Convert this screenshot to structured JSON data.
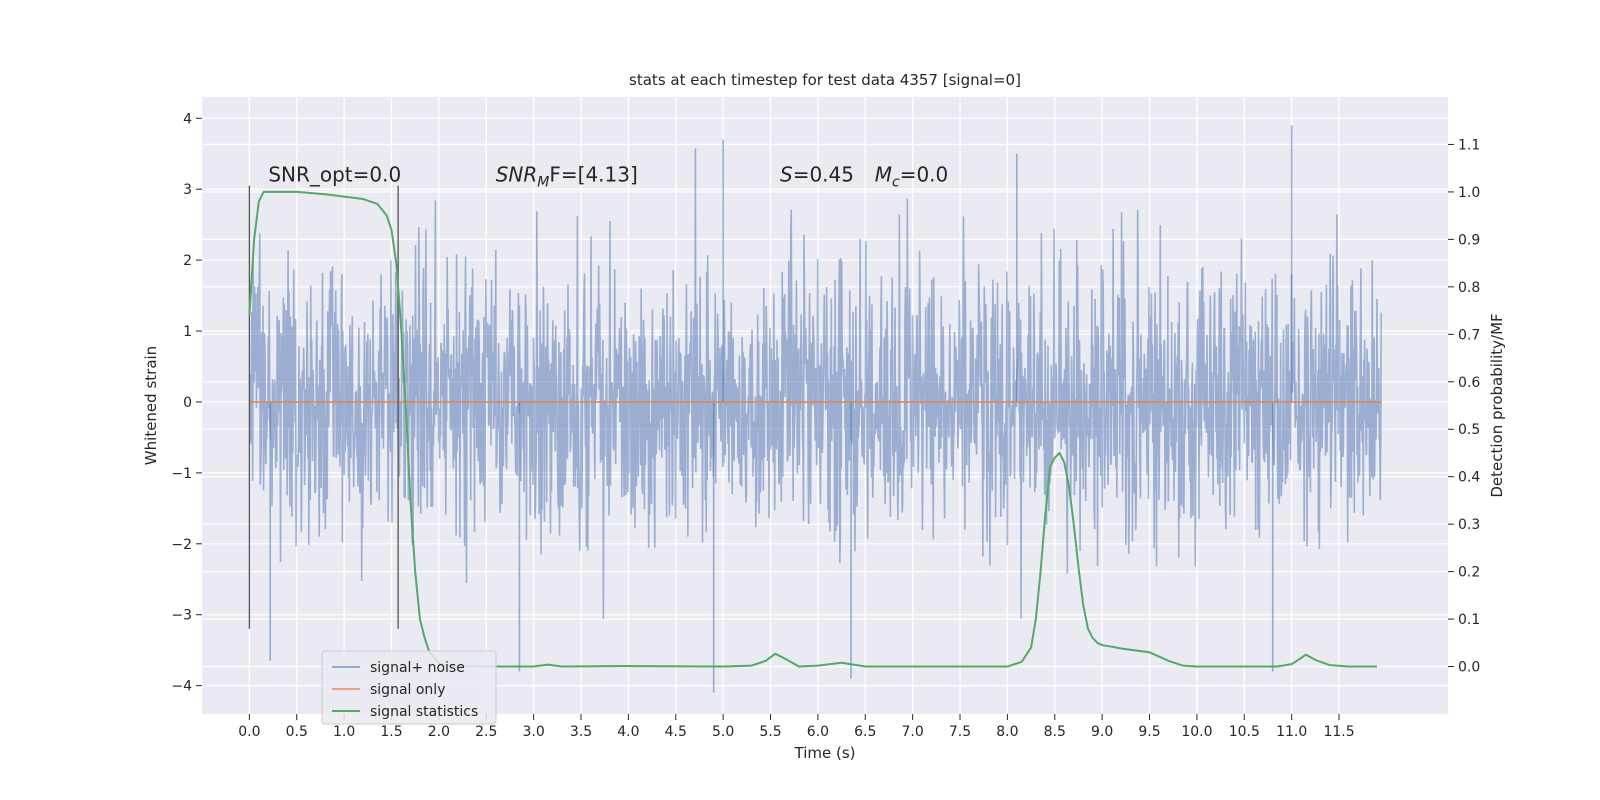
{
  "chart_data": {
    "type": "line",
    "title": "stats at each timestep for test data 4357 [signal=0]",
    "xlabel": "Time (s)",
    "ylabel": "Whitened strain",
    "y2label": "Detection probability/MF",
    "xlim": [
      -0.5,
      12.65
    ],
    "ylim": [
      -4.4,
      4.3
    ],
    "y2lim": [
      -0.1,
      1.2
    ],
    "x_ticks": [
      0.0,
      0.5,
      1.0,
      1.5,
      2.0,
      2.5,
      3.0,
      3.5,
      4.0,
      4.5,
      5.0,
      5.5,
      6.0,
      6.5,
      7.0,
      7.5,
      8.0,
      8.5,
      9.0,
      9.5,
      10.0,
      10.5,
      11.0,
      11.5
    ],
    "x_tick_labels": [
      "0.0",
      "0.5",
      "1.0",
      "1.5",
      "2.0",
      "2.5",
      "3.0",
      "3.5",
      "4.0",
      "4.5",
      "5.0",
      "5.5",
      "6.0",
      "6.5",
      "7.0",
      "7.5",
      "8.0",
      "8.5",
      "9.0",
      "9.5",
      "10.0",
      "10.5",
      "11.0",
      "11.5"
    ],
    "y_ticks": [
      -4,
      -3,
      -2,
      -1,
      0,
      1,
      2,
      3,
      4
    ],
    "y_tick_labels": [
      "−4",
      "−3",
      "−2",
      "−1",
      "0",
      "1",
      "2",
      "3",
      "4"
    ],
    "y2_ticks": [
      0.0,
      0.1,
      0.2,
      0.3,
      0.4,
      0.5,
      0.6,
      0.7,
      0.8,
      0.9,
      1.0,
      1.1
    ],
    "y2_tick_labels": [
      "0.0",
      "0.1",
      "0.2",
      "0.3",
      "0.4",
      "0.5",
      "0.6",
      "0.7",
      "0.8",
      "0.9",
      "1.0",
      "1.1"
    ],
    "grid": true,
    "legend_position": "lower-left",
    "series": [
      {
        "name": "signal+ noise",
        "axis": "left",
        "color": "#4c72b0",
        "description_of_data": "dense whitened strain noise from 0 to ~12 s, mostly within ±2.5, spikes to about ±3.9",
        "x_range": [
          0.0,
          11.95
        ],
        "extremes": {
          "max": 3.9,
          "min": -4.1
        }
      },
      {
        "name": "signal only",
        "axis": "left",
        "color": "#dd8452",
        "x": [
          0.0,
          11.95
        ],
        "y": [
          0.0,
          0.0
        ]
      },
      {
        "name": "signal statistics",
        "axis": "right",
        "color": "#55a868",
        "x": [
          0.0,
          0.05,
          0.1,
          0.15,
          0.2,
          0.3,
          0.5,
          0.8,
          1.0,
          1.2,
          1.35,
          1.45,
          1.5,
          1.55,
          1.6,
          1.65,
          1.7,
          1.75,
          1.8,
          1.85,
          1.9,
          2.0,
          2.1,
          2.5,
          3.0,
          3.15,
          3.3,
          4.0,
          5.0,
          5.3,
          5.45,
          5.55,
          5.65,
          5.8,
          6.0,
          6.25,
          6.5,
          7.0,
          8.0,
          8.15,
          8.25,
          8.3,
          8.35,
          8.4,
          8.45,
          8.5,
          8.55,
          8.6,
          8.65,
          8.7,
          8.75,
          8.8,
          8.85,
          8.9,
          8.95,
          9.0,
          9.1,
          9.2,
          9.5,
          9.7,
          9.85,
          10.0,
          10.5,
          10.85,
          11.0,
          11.1,
          11.15,
          11.25,
          11.4,
          11.6,
          11.9
        ],
        "y": [
          0.74,
          0.9,
          0.98,
          1.0,
          1.0,
          1.0,
          1.0,
          0.995,
          0.99,
          0.985,
          0.975,
          0.95,
          0.92,
          0.85,
          0.72,
          0.55,
          0.35,
          0.2,
          0.1,
          0.06,
          0.03,
          0.008,
          0.002,
          0.0,
          0.0,
          0.004,
          0.0,
          0.001,
          0.0,
          0.002,
          0.012,
          0.027,
          0.017,
          0.0,
          0.002,
          0.008,
          0.0,
          0.0,
          0.0,
          0.01,
          0.04,
          0.1,
          0.2,
          0.32,
          0.42,
          0.44,
          0.45,
          0.43,
          0.38,
          0.3,
          0.21,
          0.13,
          0.08,
          0.06,
          0.05,
          0.045,
          0.042,
          0.038,
          0.03,
          0.012,
          0.002,
          0.0,
          0.0,
          0.0,
          0.005,
          0.018,
          0.025,
          0.014,
          0.003,
          0.0,
          0.0
        ]
      }
    ],
    "vertical_lines": [
      0.0,
      1.57
    ],
    "vertical_lines_yrange": [
      -3.2,
      3.05
    ],
    "annotations": [
      {
        "text": "SNR_opt=0.0",
        "x": 0.2,
        "y": 3.05
      },
      {
        "math": "SNR",
        "sub": "M",
        "rest": "F=[4.13]",
        "x": 2.6,
        "y": 3.05
      },
      {
        "math": "S",
        "rest": "=0.45",
        "x": 5.6,
        "y": 3.05
      },
      {
        "math": "M",
        "sub": "c",
        "rest": "=0.0",
        "x": 6.6,
        "y": 3.05
      }
    ]
  }
}
